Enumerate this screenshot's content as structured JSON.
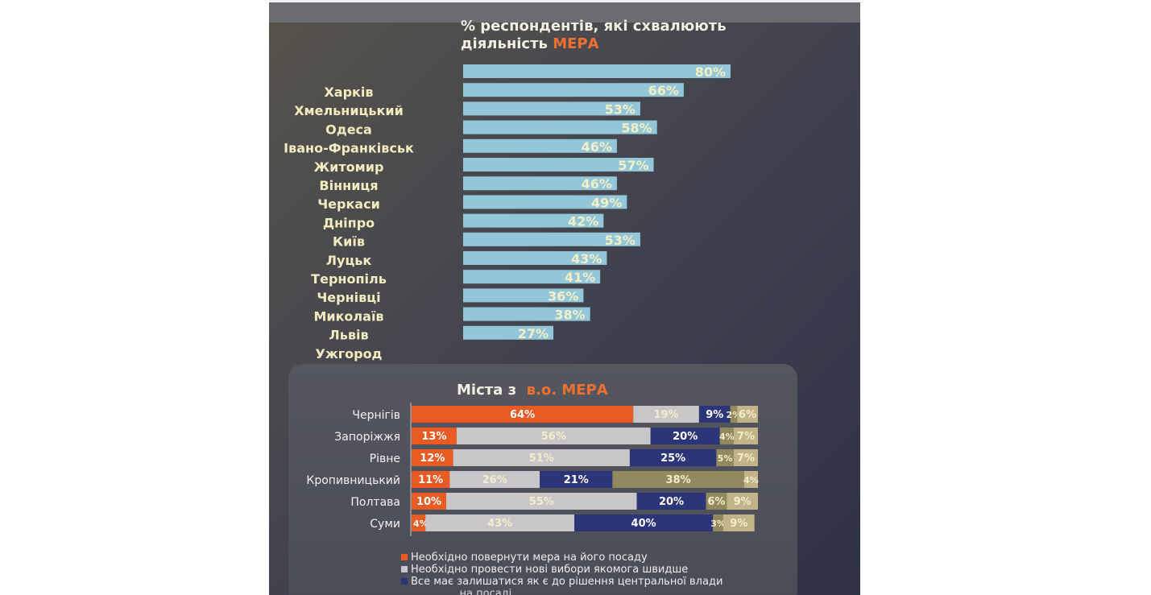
{
  "colors": {
    "approval_bar": "#93c6d8",
    "value_label": "#f4efc6",
    "city_label": "#f2ecc0",
    "return": "#ea5a23",
    "new_elections": "#c8c6c8",
    "status_quo": "#2c3577",
    "other_1": "#93895f",
    "other_2": "#c2b388"
  },
  "chart_data": [
    {
      "type": "bar",
      "orientation": "horizontal",
      "title": "% респондентів, які схвалюють",
      "title_line2": "діяльність",
      "title_accent": "МЕРА",
      "categories": [
        "Харків",
        "Хмельницький",
        "Одеса",
        "Івано-Франківськ",
        "Житомир",
        "Вінниця",
        "Черкаси",
        "Дніпро",
        "Київ",
        "Луцьк",
        "Тернопіль",
        "Чернівці",
        "Миколаїв",
        "Львів",
        "Ужгород"
      ],
      "values": [
        80,
        66,
        53,
        58,
        46,
        57,
        46,
        49,
        42,
        53,
        43,
        41,
        36,
        38,
        27
      ],
      "value_labels": [
        "80%",
        "66%",
        "53%",
        "58%",
        "46%",
        "57%",
        "46%",
        "49%",
        "42%",
        "53%",
        "43%",
        "41%",
        "36%",
        "38%",
        "27%"
      ],
      "xlim": [
        0,
        100
      ]
    },
    {
      "type": "bar",
      "orientation": "horizontal",
      "stacked": true,
      "title": "Міста з",
      "title_accent": "в.о. МЕРА",
      "categories": [
        "Чернігів",
        "Запоріжжя",
        "Рівне",
        "Кропивницький",
        "Полтава",
        "Суми"
      ],
      "series": [
        {
          "name": "Необхідно повернути мера на його посаду",
          "values": [
            64,
            13,
            12,
            11,
            10,
            4
          ]
        },
        {
          "name": "Необхідно провести нові вибори якомога швидше",
          "values": [
            19,
            56,
            51,
            26,
            55,
            43
          ]
        },
        {
          "name": "Все має залишатися як є до рішення центральної влади",
          "values": [
            9,
            20,
            25,
            21,
            20,
            40
          ]
        },
        {
          "values": [
            2,
            4,
            5,
            38,
            6,
            3
          ]
        },
        {
          "values": [
            6,
            7,
            7,
            4,
            9,
            9
          ]
        }
      ],
      "labels": [
        [
          "64%",
          "19%",
          "9%",
          "2%",
          "6%"
        ],
        [
          "13%",
          "56%",
          "20%",
          "4%",
          "7%"
        ],
        [
          "12%",
          "51%",
          "25%",
          "5%",
          "7%"
        ],
        [
          "11%",
          "26%",
          "21%",
          "38%",
          "4%"
        ],
        [
          "10%",
          "55%",
          "20%",
          "6%",
          "9%"
        ],
        [
          "4%",
          "43%",
          "40%",
          "3%",
          "9%"
        ]
      ],
      "legend_text": [
        "Необхідно повернути мера на його посаду",
        "Необхідно провести нові вибори якомога швидше",
        "Все має залишатися як є до рішення центральної влади",
        "... на посаді"
      ]
    }
  ]
}
